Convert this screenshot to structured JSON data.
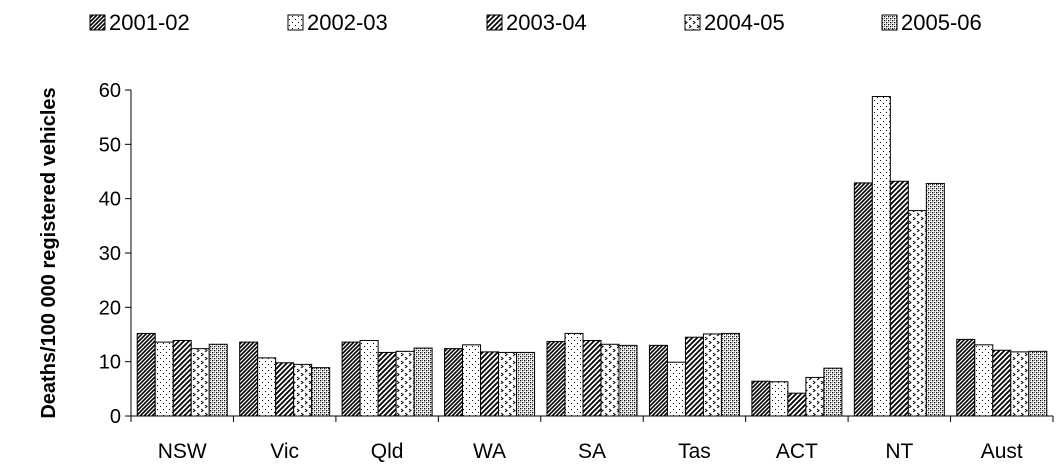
{
  "chart_data": {
    "type": "bar",
    "title": "",
    "xlabel": "",
    "ylabel": "Deaths/100 000 registered vehicles",
    "ylim": [
      0,
      60
    ],
    "yticks": [
      0,
      10,
      20,
      30,
      40,
      50,
      60
    ],
    "grid": false,
    "legend_position": "top",
    "categories": [
      "NSW",
      "Vic",
      "Qld",
      "WA",
      "SA",
      "Tas",
      "ACT",
      "NT",
      "Aust"
    ],
    "series": [
      {
        "name": "2001-02",
        "pattern": "dense-diagonal-hatch",
        "values": [
          15.2,
          13.6,
          13.6,
          12.4,
          13.7,
          13.0,
          6.4,
          42.9,
          14.1
        ]
      },
      {
        "name": "2002-03",
        "pattern": "sparse-dots",
        "values": [
          13.6,
          10.7,
          13.9,
          13.1,
          15.2,
          9.9,
          6.3,
          58.8,
          13.1
        ]
      },
      {
        "name": "2003-04",
        "pattern": "diagonal-hatch",
        "values": [
          13.9,
          9.8,
          11.7,
          11.8,
          13.9,
          14.5,
          4.2,
          43.2,
          12.1
        ]
      },
      {
        "name": "2004-05",
        "pattern": "small-chevrons",
        "values": [
          12.4,
          9.5,
          11.9,
          11.7,
          13.2,
          15.1,
          7.1,
          37.8,
          11.8
        ]
      },
      {
        "name": "2005-06",
        "pattern": "dense-checker",
        "values": [
          13.2,
          8.9,
          12.5,
          11.7,
          13.0,
          15.2,
          8.8,
          42.8,
          11.9
        ]
      }
    ],
    "colors": {
      "ink": "#000000",
      "background": "#ffffff"
    }
  }
}
